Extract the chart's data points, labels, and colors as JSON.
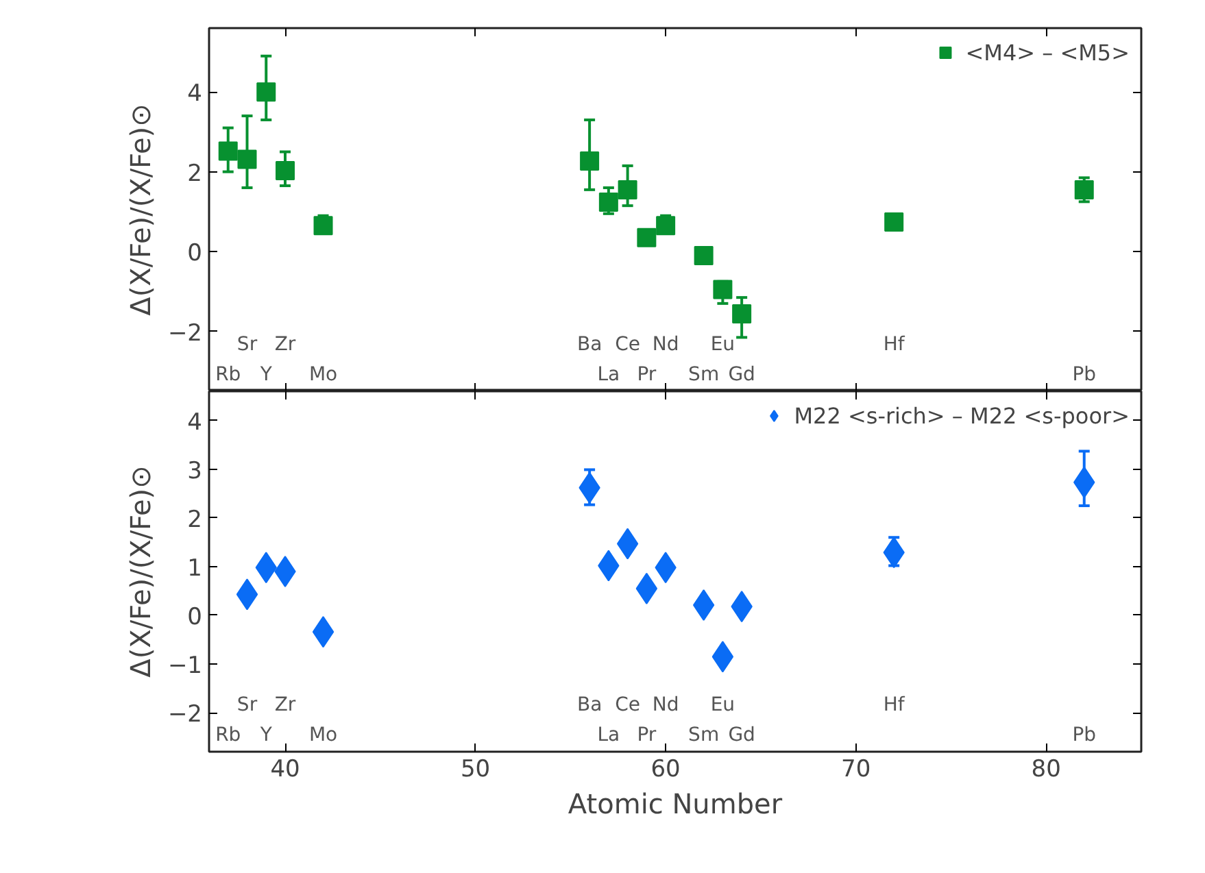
{
  "chart_data": [
    {
      "type": "scatter",
      "ylabel": "Δ(X/Fe)/(X/Fe)⊙",
      "xlim": [
        36,
        85
      ],
      "xticks": [
        40,
        50,
        60,
        70,
        80
      ],
      "ylim": [
        -3.5,
        5.6
      ],
      "yticks": [
        -2,
        0,
        2,
        4
      ],
      "tick_labels": "y",
      "legend": "top right",
      "grid": false,
      "marker": "square",
      "series": [
        {
          "name": "<M4> – <M5>",
          "color": "#079130",
          "x": [
            37,
            38,
            39,
            40,
            42,
            56,
            57,
            58,
            59,
            60,
            62,
            63,
            64,
            72,
            82
          ],
          "values": [
            2.52,
            2.31,
            4.0,
            2.03,
            0.65,
            2.27,
            1.24,
            1.55,
            0.35,
            0.65,
            -0.1,
            -0.95,
            -1.56,
            0.74,
            1.55
          ],
          "errors": [
            [
              2.0,
              3.1
            ],
            [
              1.6,
              3.4
            ],
            [
              3.3,
              4.9
            ],
            [
              1.65,
              2.5
            ],
            [
              0.45,
              0.9
            ],
            [
              1.55,
              3.3
            ],
            [
              0.95,
              1.6
            ],
            [
              1.15,
              2.15
            ],
            null,
            [
              0.45,
              0.9
            ],
            null,
            [
              -1.3,
              -0.75
            ],
            [
              -2.15,
              -1.15
            ],
            null,
            [
              1.25,
              1.85
            ]
          ]
        }
      ],
      "annotations": [
        "Rb",
        "Sr",
        "Y",
        "Zr",
        "Mo",
        "Ba",
        "La",
        "Ce",
        "Pr",
        "Nd",
        "Sm",
        "Eu",
        "Gd",
        "Hf",
        "Pb"
      ]
    },
    {
      "type": "scatter",
      "xlabel": "Atomic Number",
      "ylabel": "Δ(X/Fe)/(X/Fe)⊙",
      "xlim": [
        36,
        85
      ],
      "xticks": [
        40,
        50,
        60,
        70,
        80
      ],
      "ylim": [
        -2.8,
        4.6
      ],
      "yticks": [
        -2,
        -1,
        0,
        1,
        2,
        3,
        4
      ],
      "legend": "top right",
      "grid": false,
      "marker": "diamond",
      "series": [
        {
          "name": "M22 <s-rich> – M22 <s-poor>",
          "color": "#0a6cf5",
          "x": [
            38,
            39,
            40,
            42,
            56,
            57,
            58,
            59,
            60,
            62,
            63,
            64,
            72,
            82
          ],
          "values": [
            0.43,
            0.98,
            0.9,
            -0.34,
            2.62,
            1.02,
            1.47,
            0.55,
            0.98,
            0.21,
            -0.85,
            0.18,
            1.29,
            2.73
          ],
          "errors": [
            null,
            null,
            null,
            null,
            [
              2.27,
              2.99
            ],
            null,
            null,
            null,
            null,
            null,
            null,
            null,
            [
              1.02,
              1.6
            ],
            [
              2.25,
              3.37
            ]
          ]
        }
      ],
      "annotations": [
        "Rb",
        "Sr",
        "Y",
        "Zr",
        "Mo",
        "Ba",
        "La",
        "Ce",
        "Pr",
        "Nd",
        "Sm",
        "Eu",
        "Gd",
        "Hf",
        "Pb"
      ]
    }
  ]
}
